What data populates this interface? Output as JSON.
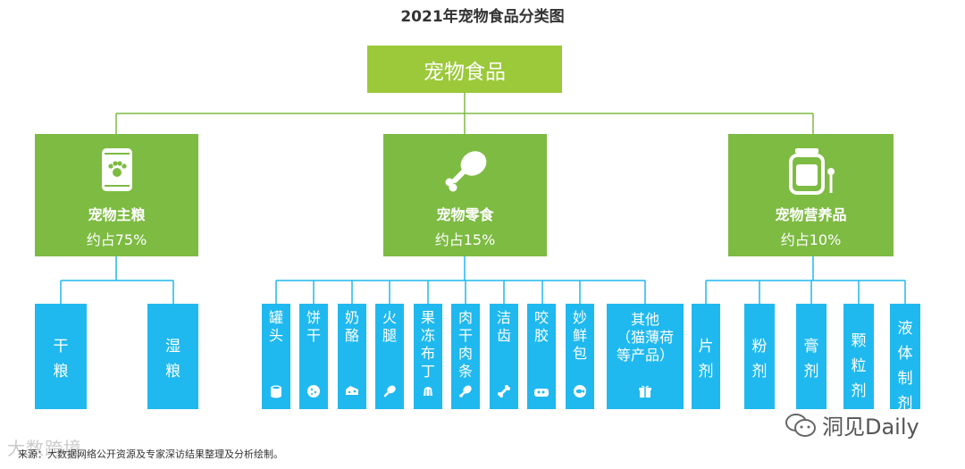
{
  "title": "2021年宠物食品分类图",
  "root": "宠物食品",
  "categories": [
    {
      "name": "宠物主粮",
      "share": "约占75%"
    },
    {
      "name": "宠物零食",
      "share": "约占15%"
    },
    {
      "name": "宠物营养品",
      "share": "约占10%"
    }
  ],
  "staple": [
    "干\n粮",
    "湿\n粮"
  ],
  "snacks": [
    "罐\n头",
    "饼\n干",
    "奶\n酪",
    "火\n腿",
    "果\n冻\n布\n丁",
    "肉\n干\n肉\n条",
    "洁\n齿",
    "咬\n胶",
    "妙\n鲜\n包",
    "其他\n（猫薄荷\n等产品）"
  ],
  "supplements": [
    "片\n剂",
    "粉\n剂",
    "膏\n剂",
    "颗\n粒\n剂",
    "液\n体\n制\n剂"
  ],
  "source": "来源：大数据网络公开资源及专家深访结果整理及分析绘制。",
  "watermark_left": "大数跨境",
  "watermark_right": "洞见Daily",
  "colors": {
    "root": "#9bc93a",
    "category": "#7dbb42",
    "leaf": "#1fb9ef",
    "line": "#7dbb42",
    "leaf_line": "#1fb9ef"
  }
}
